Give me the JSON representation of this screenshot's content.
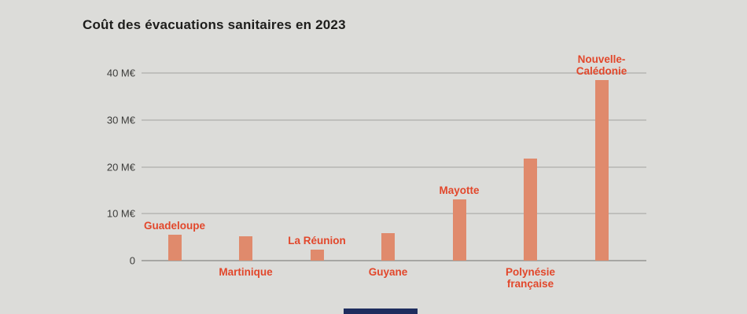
{
  "chart_data": {
    "type": "bar",
    "title": "Coût des évacuations sanitaires en 2023",
    "categories": [
      "Guadeloupe",
      "Martinique",
      "La Réunion",
      "Guyane",
      "Mayotte",
      "Polynésie française",
      "Nouvelle-Calédonie"
    ],
    "values": [
      5.5,
      5.2,
      2.3,
      5.8,
      13,
      21.8,
      38.5
    ],
    "unit": "M€",
    "xlabel": "",
    "ylabel": "",
    "ylim": [
      0,
      40
    ],
    "yticks": [
      0,
      10,
      20,
      30,
      40
    ],
    "ytick_labels": [
      "0",
      "10 M€",
      "20 M€",
      "30 M€",
      "40 M€"
    ],
    "grid": "horizontal",
    "legend": "none",
    "label_positions": [
      "above",
      "below",
      "above",
      "below",
      "above",
      "below",
      "above"
    ],
    "label_lines": [
      [
        "Guadeloupe"
      ],
      [
        "Martinique"
      ],
      [
        "La Réunion"
      ],
      [
        "Guyane"
      ],
      [
        "Mayotte"
      ],
      [
        "Polynésie",
        "française"
      ],
      [
        "Nouvelle-",
        "Calédonie"
      ]
    ],
    "colors": {
      "bar": "#e08a6c",
      "category_label": "#e2472b",
      "background": "#dcdcd9",
      "grid": "#bfbfbc",
      "axis_text": "#3c3c3a",
      "bottom_strip": "#1e2d5e"
    }
  }
}
